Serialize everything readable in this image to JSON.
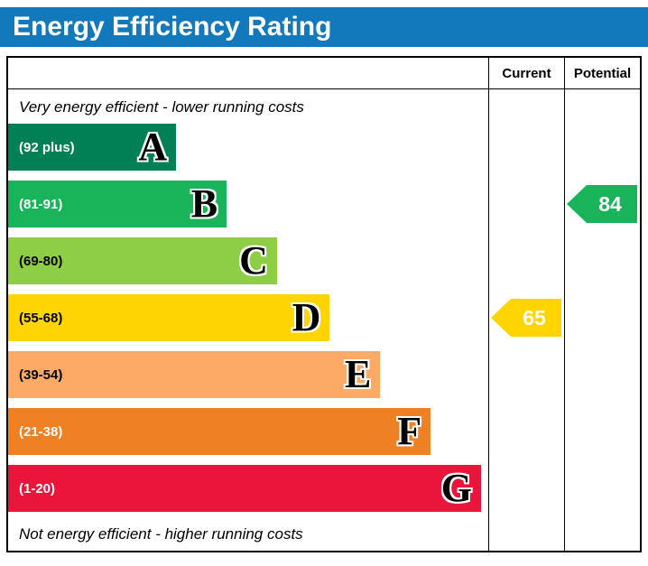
{
  "title": "Energy Efficiency Rating",
  "table": {
    "current_header": "Current",
    "potential_header": "Potential"
  },
  "chart_data": {
    "type": "bar",
    "title": "Energy Efficiency Rating",
    "top_note": "Very energy efficient - lower running costs",
    "bottom_note": "Not energy efficient - higher running costs",
    "bands": [
      {
        "letter": "A",
        "range_label": "(92 plus)",
        "color": "#008054",
        "text_color": "#ffffff",
        "width_pct": 35
      },
      {
        "letter": "B",
        "range_label": "(81-91)",
        "color": "#19b459",
        "text_color": "#ffffff",
        "width_pct": 45.5
      },
      {
        "letter": "C",
        "range_label": "(69-80)",
        "color": "#8dce46",
        "text_color": "#000000",
        "width_pct": 56
      },
      {
        "letter": "D",
        "range_label": "(55-68)",
        "color": "#ffd500",
        "text_color": "#000000",
        "width_pct": 67
      },
      {
        "letter": "E",
        "range_label": "(39-54)",
        "color": "#fcaa65",
        "text_color": "#000000",
        "width_pct": 77.5
      },
      {
        "letter": "F",
        "range_label": "(21-38)",
        "color": "#ef8023",
        "text_color": "#ffffff",
        "width_pct": 88
      },
      {
        "letter": "G",
        "range_label": "(1-20)",
        "color": "#e9153b",
        "text_color": "#ffffff",
        "width_pct": 98.5
      }
    ],
    "current": {
      "value": 65,
      "band": "D",
      "band_index": 3,
      "color": "#ffd500"
    },
    "potential": {
      "value": 84,
      "band": "B",
      "band_index": 1,
      "color": "#19b459"
    }
  }
}
